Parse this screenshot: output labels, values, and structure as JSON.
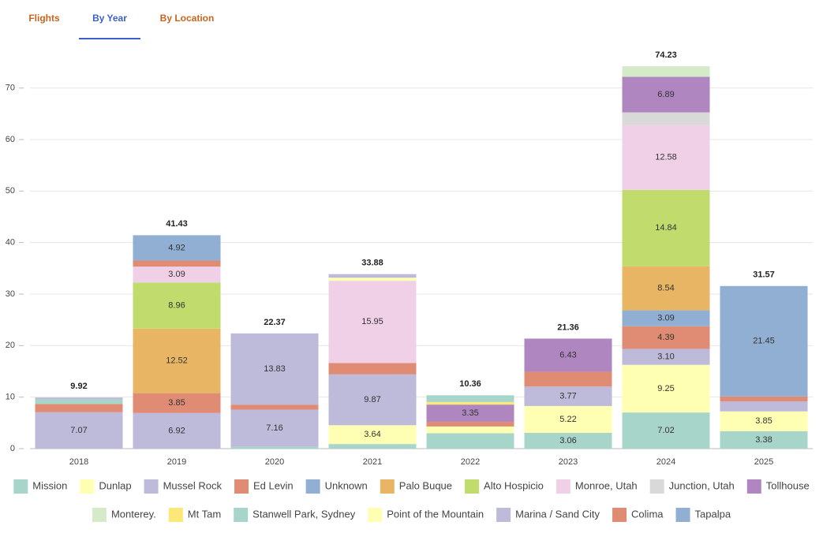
{
  "tabs": [
    "Flights",
    "By Year",
    "By Location"
  ],
  "active_tab": 1,
  "chart_data": {
    "type": "stacked_bar",
    "categories": [
      "2018",
      "2019",
      "2020",
      "2021",
      "2022",
      "2023",
      "2024",
      "2025"
    ],
    "totals": [
      9.92,
      41.43,
      22.37,
      33.88,
      10.36,
      21.36,
      74.23,
      31.57
    ],
    "ylim": [
      0,
      75
    ],
    "yticks": [
      0,
      10,
      20,
      30,
      40,
      50,
      60,
      70
    ],
    "grid": true,
    "legend": "bottom",
    "series": [
      {
        "name": "Mission",
        "color": "#a8d5ca",
        "values": [
          null,
          null,
          0.4,
          0.9,
          3.0,
          3.06,
          7.02,
          null
        ],
        "value_labels": [
          null,
          null,
          null,
          null,
          null,
          "3.06",
          "7.02",
          null
        ]
      },
      {
        "name": "Dunlap",
        "color": "#ffffb3",
        "values": [
          null,
          null,
          null,
          3.64,
          1.3,
          5.22,
          9.25,
          null
        ],
        "value_labels": [
          null,
          null,
          null,
          "3.64",
          null,
          "5.22",
          "9.25",
          null
        ]
      },
      {
        "name": "Mussel Rock",
        "color": "#bebada",
        "values": [
          7.07,
          6.92,
          7.16,
          9.87,
          null,
          3.77,
          3.1,
          null
        ],
        "value_labels": [
          "7.07",
          "6.92",
          "7.16",
          "9.87",
          null,
          "3.77",
          "3.10",
          null
        ]
      },
      {
        "name": "Ed Levin",
        "color": "#e08b74",
        "values": [
          1.6,
          3.85,
          0.98,
          2.22,
          0.9,
          2.88,
          4.39,
          null
        ],
        "value_labels": [
          null,
          "3.85",
          null,
          null,
          null,
          null,
          "4.39",
          null
        ]
      },
      {
        "name": "Unknown",
        "color": "#91afd3",
        "values": [
          null,
          null,
          null,
          null,
          null,
          null,
          3.09,
          null
        ],
        "value_labels": [
          null,
          null,
          null,
          null,
          null,
          null,
          "3.09",
          null
        ]
      },
      {
        "name": "Palo Buque",
        "color": "#e8b564",
        "values": [
          null,
          12.52,
          null,
          null,
          null,
          null,
          8.54,
          null
        ],
        "value_labels": [
          null,
          "12.52",
          null,
          null,
          null,
          null,
          "8.54",
          null
        ]
      },
      {
        "name": "Alto Hospicio",
        "color": "#c1dc6c",
        "values": [
          null,
          8.96,
          null,
          null,
          null,
          null,
          14.84,
          null
        ],
        "value_labels": [
          null,
          "8.96",
          null,
          null,
          null,
          null,
          "14.84",
          null
        ]
      },
      {
        "name": "Monroe, Utah",
        "color": "#f0d0e7",
        "values": [
          null,
          3.09,
          null,
          15.95,
          null,
          null,
          12.58,
          null
        ],
        "value_labels": [
          null,
          "3.09",
          null,
          "15.95",
          null,
          null,
          "12.58",
          null
        ]
      },
      {
        "name": "Junction, Utah",
        "color": "#d9d9d9",
        "values": [
          null,
          null,
          null,
          null,
          null,
          null,
          2.47,
          null
        ]
      },
      {
        "name": "Tollhouse",
        "color": "#af86bf",
        "values": [
          null,
          null,
          null,
          null,
          3.35,
          6.43,
          6.89,
          null
        ],
        "value_labels": [
          null,
          null,
          null,
          null,
          "3.35",
          "6.43",
          "6.89",
          null
        ]
      },
      {
        "name": "Monterey.",
        "color": "#d5eac8",
        "values": [
          null,
          null,
          null,
          null,
          null,
          null,
          2.06,
          null
        ]
      },
      {
        "name": "Mt Tam",
        "color": "#fbe878",
        "values": [
          null,
          null,
          null,
          null,
          0.5,
          null,
          null,
          null
        ]
      },
      {
        "name": "Stanwell Park, Sydney",
        "color": "#a8d5ca",
        "values": [
          0.9,
          null,
          null,
          null,
          1.31,
          null,
          null,
          3.38
        ],
        "value_labels": [
          null,
          null,
          null,
          null,
          null,
          null,
          null,
          "3.38"
        ]
      },
      {
        "name": "Point of the Mountain",
        "color": "#ffffb3",
        "values": [
          null,
          null,
          null,
          0.6,
          null,
          null,
          null,
          3.85
        ],
        "value_labels": [
          null,
          null,
          null,
          null,
          null,
          null,
          null,
          "3.85"
        ]
      },
      {
        "name": "Marina / Sand City",
        "color": "#bebada",
        "values": [
          0.35,
          null,
          13.83,
          0.7,
          null,
          null,
          null,
          1.95
        ],
        "value_labels": [
          null,
          null,
          "13.83",
          null,
          null,
          null,
          null,
          null
        ]
      },
      {
        "name": "Colima",
        "color": "#e08b74",
        "values": [
          null,
          1.17,
          null,
          null,
          null,
          null,
          null,
          0.94
        ]
      },
      {
        "name": "Tapalpa",
        "color": "#91afd3",
        "values": [
          null,
          4.92,
          null,
          null,
          null,
          null,
          null,
          21.45
        ],
        "value_labels": [
          null,
          "4.92",
          null,
          null,
          null,
          null,
          null,
          "21.45"
        ]
      }
    ]
  }
}
